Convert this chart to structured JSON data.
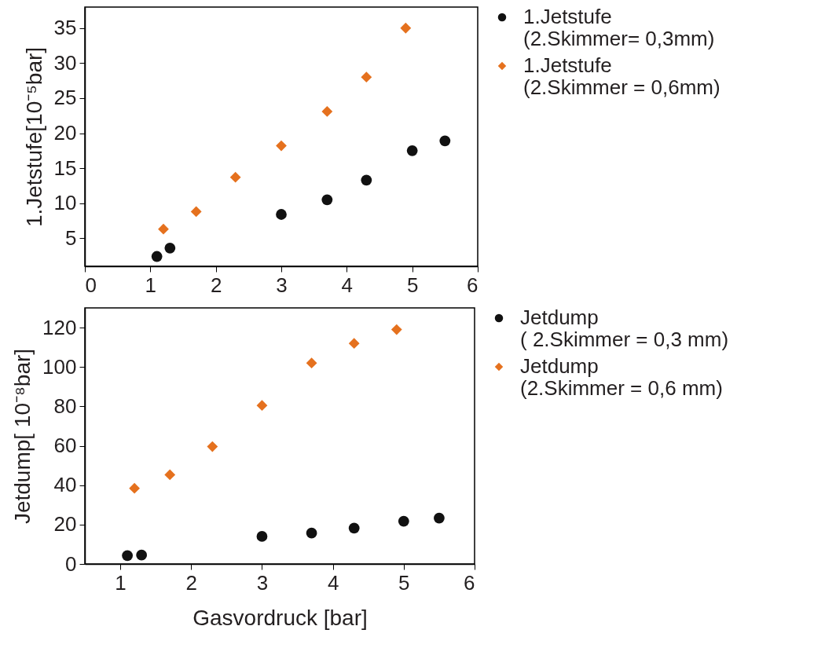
{
  "chart_data": [
    {
      "type": "scatter",
      "ylabel": "1.Jetstufe[10⁻⁵bar]",
      "xlim": [
        0,
        6
      ],
      "xticks": [
        0,
        1,
        2,
        3,
        4,
        5,
        6
      ],
      "ylim": [
        1,
        38
      ],
      "yticks": [
        5,
        10,
        15,
        20,
        25,
        30,
        35
      ],
      "legend": "right",
      "grid": false,
      "series": [
        {
          "name": "1.Jetstufe (2.Skimmer= 0,3mm)",
          "color": "#111111",
          "marker": "circle",
          "x": [
            1.1,
            1.3,
            3.0,
            3.7,
            4.3,
            5.0,
            5.5
          ],
          "values": [
            2.4,
            3.6,
            8.4,
            10.5,
            13.3,
            17.5,
            18.9
          ]
        },
        {
          "name": "1.Jetstufe (2.Skimmer = 0,6mm)",
          "color": "#e5711e",
          "marker": "diamond",
          "x": [
            1.2,
            1.7,
            2.3,
            3.0,
            3.7,
            4.3,
            4.9
          ],
          "values": [
            6.3,
            8.8,
            13.7,
            18.2,
            23.1,
            28.0,
            35.0
          ]
        }
      ]
    },
    {
      "type": "scatter",
      "xlabel": "Gasvordruck [bar]",
      "ylabel": "Jetdump[ 10⁻⁸bar]",
      "xlim": [
        0.5,
        6
      ],
      "xticks": [
        1,
        2,
        3,
        4,
        5,
        6
      ],
      "ylim": [
        0,
        130
      ],
      "yticks": [
        0,
        20,
        40,
        60,
        80,
        100,
        120
      ],
      "legend": "right",
      "grid": false,
      "series": [
        {
          "name": "Jetdump ( 2.Skimmer = 0,3 mm)",
          "color": "#111111",
          "marker": "circle",
          "x": [
            1.1,
            1.3,
            3.0,
            3.7,
            4.3,
            5.0,
            5.5
          ],
          "values": [
            4.2,
            4.5,
            14.0,
            15.7,
            18.2,
            21.7,
            23.3
          ]
        },
        {
          "name": "Jetdump (2.Skimmer = 0,6 mm)",
          "color": "#e5711e",
          "marker": "diamond",
          "x": [
            1.2,
            1.7,
            2.3,
            3.0,
            3.7,
            4.3,
            4.9
          ],
          "values": [
            38.4,
            45.3,
            59.6,
            80.5,
            102,
            112,
            119
          ]
        }
      ]
    }
  ]
}
